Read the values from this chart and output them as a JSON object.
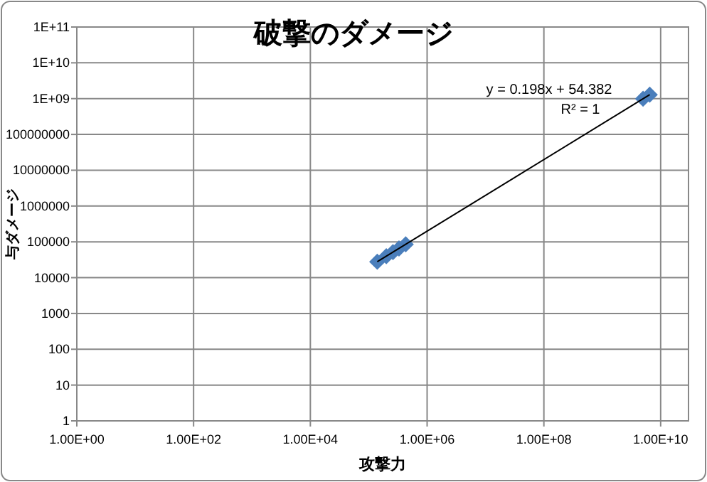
{
  "chart_data": {
    "type": "scatter",
    "title": "破撃のダメージ",
    "xlabel": "攻撃力",
    "ylabel": "与ダメージ",
    "log": "xy",
    "grid": true,
    "marker": "diamond",
    "xlim": [
      1,
      30000000000
    ],
    "ylim": [
      1,
      100000000000
    ],
    "xticks": [
      {
        "value": 1,
        "label": "1.00E+00"
      },
      {
        "value": 100,
        "label": "1.00E+02"
      },
      {
        "value": 10000,
        "label": "1.00E+04"
      },
      {
        "value": 1000000,
        "label": "1.00E+06"
      },
      {
        "value": 100000000,
        "label": "1.00E+08"
      },
      {
        "value": 10000000000,
        "label": "1.00E+10"
      }
    ],
    "yticks": [
      1,
      10,
      100,
      1000,
      10000,
      100000,
      1000000,
      10000000,
      100000000,
      {
        "value": 1000000000,
        "label": "1E+09"
      },
      {
        "value": 10000000000,
        "label": "1E+10"
      },
      {
        "value": 100000000000,
        "label": "1E+11"
      }
    ],
    "series": [
      {
        "color": "#4a7ebb",
        "x": [
          140000,
          200000,
          260000,
          330000,
          430000,
          5000000000,
          6500000000
        ],
        "values": [
          27800,
          39700,
          51500,
          65400,
          85200,
          990000000,
          1290000000
        ]
      },
      {
        "type": "line",
        "color": "#000000",
        "marker": "none",
        "line_style": "solid",
        "x": [
          140000,
          6500000000
        ],
        "values": [
          27774,
          1287000054
        ]
      }
    ],
    "annotations": [
      "y = 0.198x + 54.382",
      "R² = 1"
    ]
  }
}
